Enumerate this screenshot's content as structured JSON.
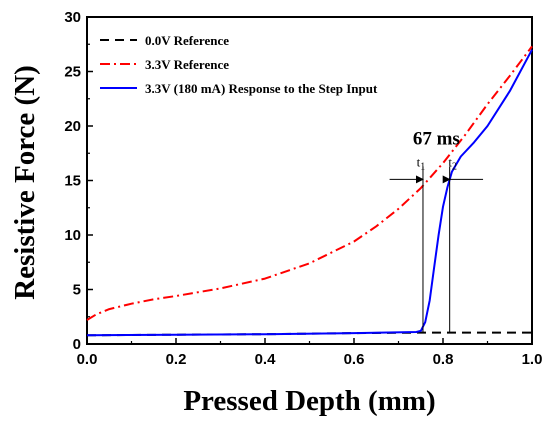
{
  "chart_data": {
    "type": "line",
    "xlabel": "Pressed Depth (mm)",
    "ylabel": "Resistive Force (N)",
    "xlim": [
      0.0,
      1.0
    ],
    "ylim": [
      0,
      30
    ],
    "xticks": [
      "0.0",
      "0.2",
      "0.4",
      "0.6",
      "0.8",
      "1.0"
    ],
    "yticks": [
      "0",
      "5",
      "10",
      "15",
      "20",
      "25",
      "30"
    ],
    "grid": false,
    "legend_position": "top-left",
    "series": [
      {
        "name": "0.0V Reference",
        "color": "#000000",
        "style": "dashed",
        "x": [
          0.0,
          0.2,
          0.4,
          0.6,
          0.76,
          0.8,
          0.9,
          1.0
        ],
        "y": [
          0.8,
          0.85,
          0.9,
          1.0,
          1.05,
          1.05,
          1.05,
          1.05
        ]
      },
      {
        "name": "3.3V Reference",
        "color": "#ff0000",
        "style": "dashdot",
        "x": [
          0.0,
          0.02,
          0.05,
          0.1,
          0.15,
          0.2,
          0.3,
          0.4,
          0.5,
          0.6,
          0.65,
          0.7,
          0.75,
          0.8,
          0.85,
          0.9,
          0.95,
          1.0
        ],
        "y": [
          2.2,
          2.7,
          3.2,
          3.7,
          4.1,
          4.4,
          5.1,
          6.0,
          7.4,
          9.4,
          10.8,
          12.4,
          14.3,
          16.6,
          19.2,
          22.0,
          24.6,
          27.3
        ]
      },
      {
        "name": "3.3V (180 mA) Response to the Step Input",
        "color": "#0000ff",
        "style": "solid",
        "x": [
          0.0,
          0.2,
          0.4,
          0.6,
          0.74,
          0.75,
          0.76,
          0.77,
          0.78,
          0.79,
          0.8,
          0.81,
          0.82,
          0.84,
          0.87,
          0.9,
          0.95,
          1.0
        ],
        "y": [
          0.8,
          0.85,
          0.9,
          1.0,
          1.1,
          1.2,
          2.0,
          4.0,
          7.0,
          10.0,
          12.6,
          14.4,
          15.8,
          17.2,
          18.5,
          20.0,
          23.2,
          27.0
        ]
      }
    ],
    "annotations": {
      "interval_label": "67 ms",
      "t1_label": "t",
      "t1_sub": "1",
      "t2_label": "t",
      "t2_sub": "2",
      "t1_x": 0.755,
      "t2_x": 0.815,
      "arrow_y": 15.1,
      "arrow_x_start": 0.68,
      "arrow_x_end": 0.89
    }
  }
}
